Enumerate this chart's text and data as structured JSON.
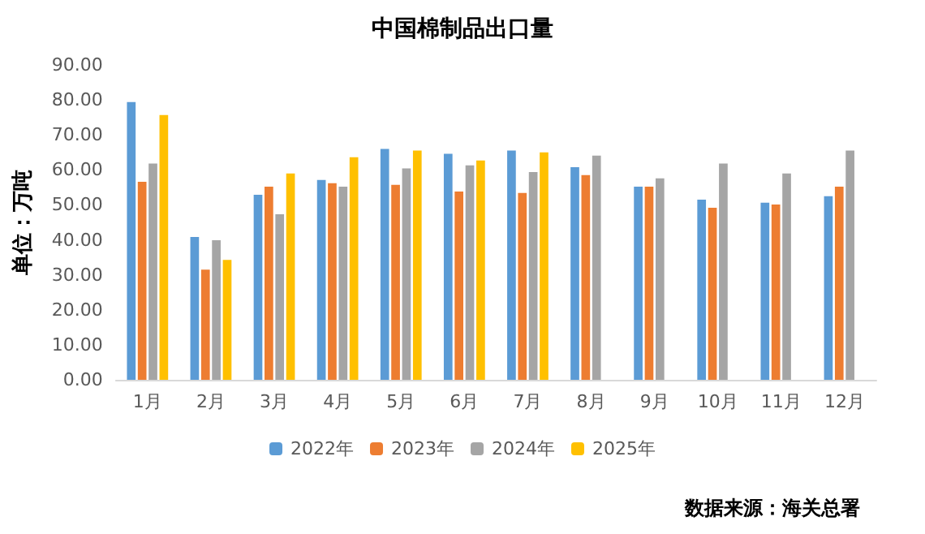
{
  "chart_data": {
    "type": "bar",
    "title": "中国棉制品出口量",
    "ylabel": "单位：万吨",
    "categories": [
      "1月",
      "2月",
      "3月",
      "4月",
      "5月",
      "6月",
      "7月",
      "8月",
      "9月",
      "10月",
      "11月",
      "12月"
    ],
    "series": [
      {
        "name": "2022年",
        "color": "#5b9bd5",
        "values": [
          79.4,
          40.8,
          52.9,
          57.1,
          66.0,
          64.6,
          65.5,
          60.8,
          55.2,
          51.5,
          50.6,
          52.5
        ]
      },
      {
        "name": "2023年",
        "color": "#ed7d31",
        "values": [
          56.6,
          31.5,
          55.2,
          56.2,
          55.7,
          53.8,
          53.4,
          58.5,
          55.2,
          49.2,
          50.1,
          55.2
        ]
      },
      {
        "name": "2024年",
        "color": "#a5a5a5",
        "values": [
          61.8,
          39.9,
          47.3,
          55.2,
          60.4,
          61.3,
          59.4,
          64.1,
          57.6,
          61.8,
          59.0,
          65.5
        ]
      },
      {
        "name": "2025年",
        "color": "#ffc000",
        "values": [
          75.7,
          34.3,
          59.0,
          63.6,
          65.5,
          62.7,
          65.0,
          null,
          null,
          null,
          null,
          null
        ]
      }
    ],
    "ylim": [
      0,
      90
    ],
    "yticks": [
      {
        "value": 0,
        "label": "0.00"
      },
      {
        "value": 10,
        "label": "10.00"
      },
      {
        "value": 20,
        "label": "20.00"
      },
      {
        "value": 30,
        "label": "30.00"
      },
      {
        "value": 40,
        "label": "40.00"
      },
      {
        "value": 50,
        "label": "50.00"
      },
      {
        "value": 60,
        "label": "60.00"
      },
      {
        "value": 70,
        "label": "70.00"
      },
      {
        "value": 80,
        "label": "80.00"
      },
      {
        "value": 90,
        "label": "90.00"
      }
    ],
    "grid": false,
    "legend": "bottom",
    "annotations": [
      "数据来源：海关总署"
    ]
  }
}
